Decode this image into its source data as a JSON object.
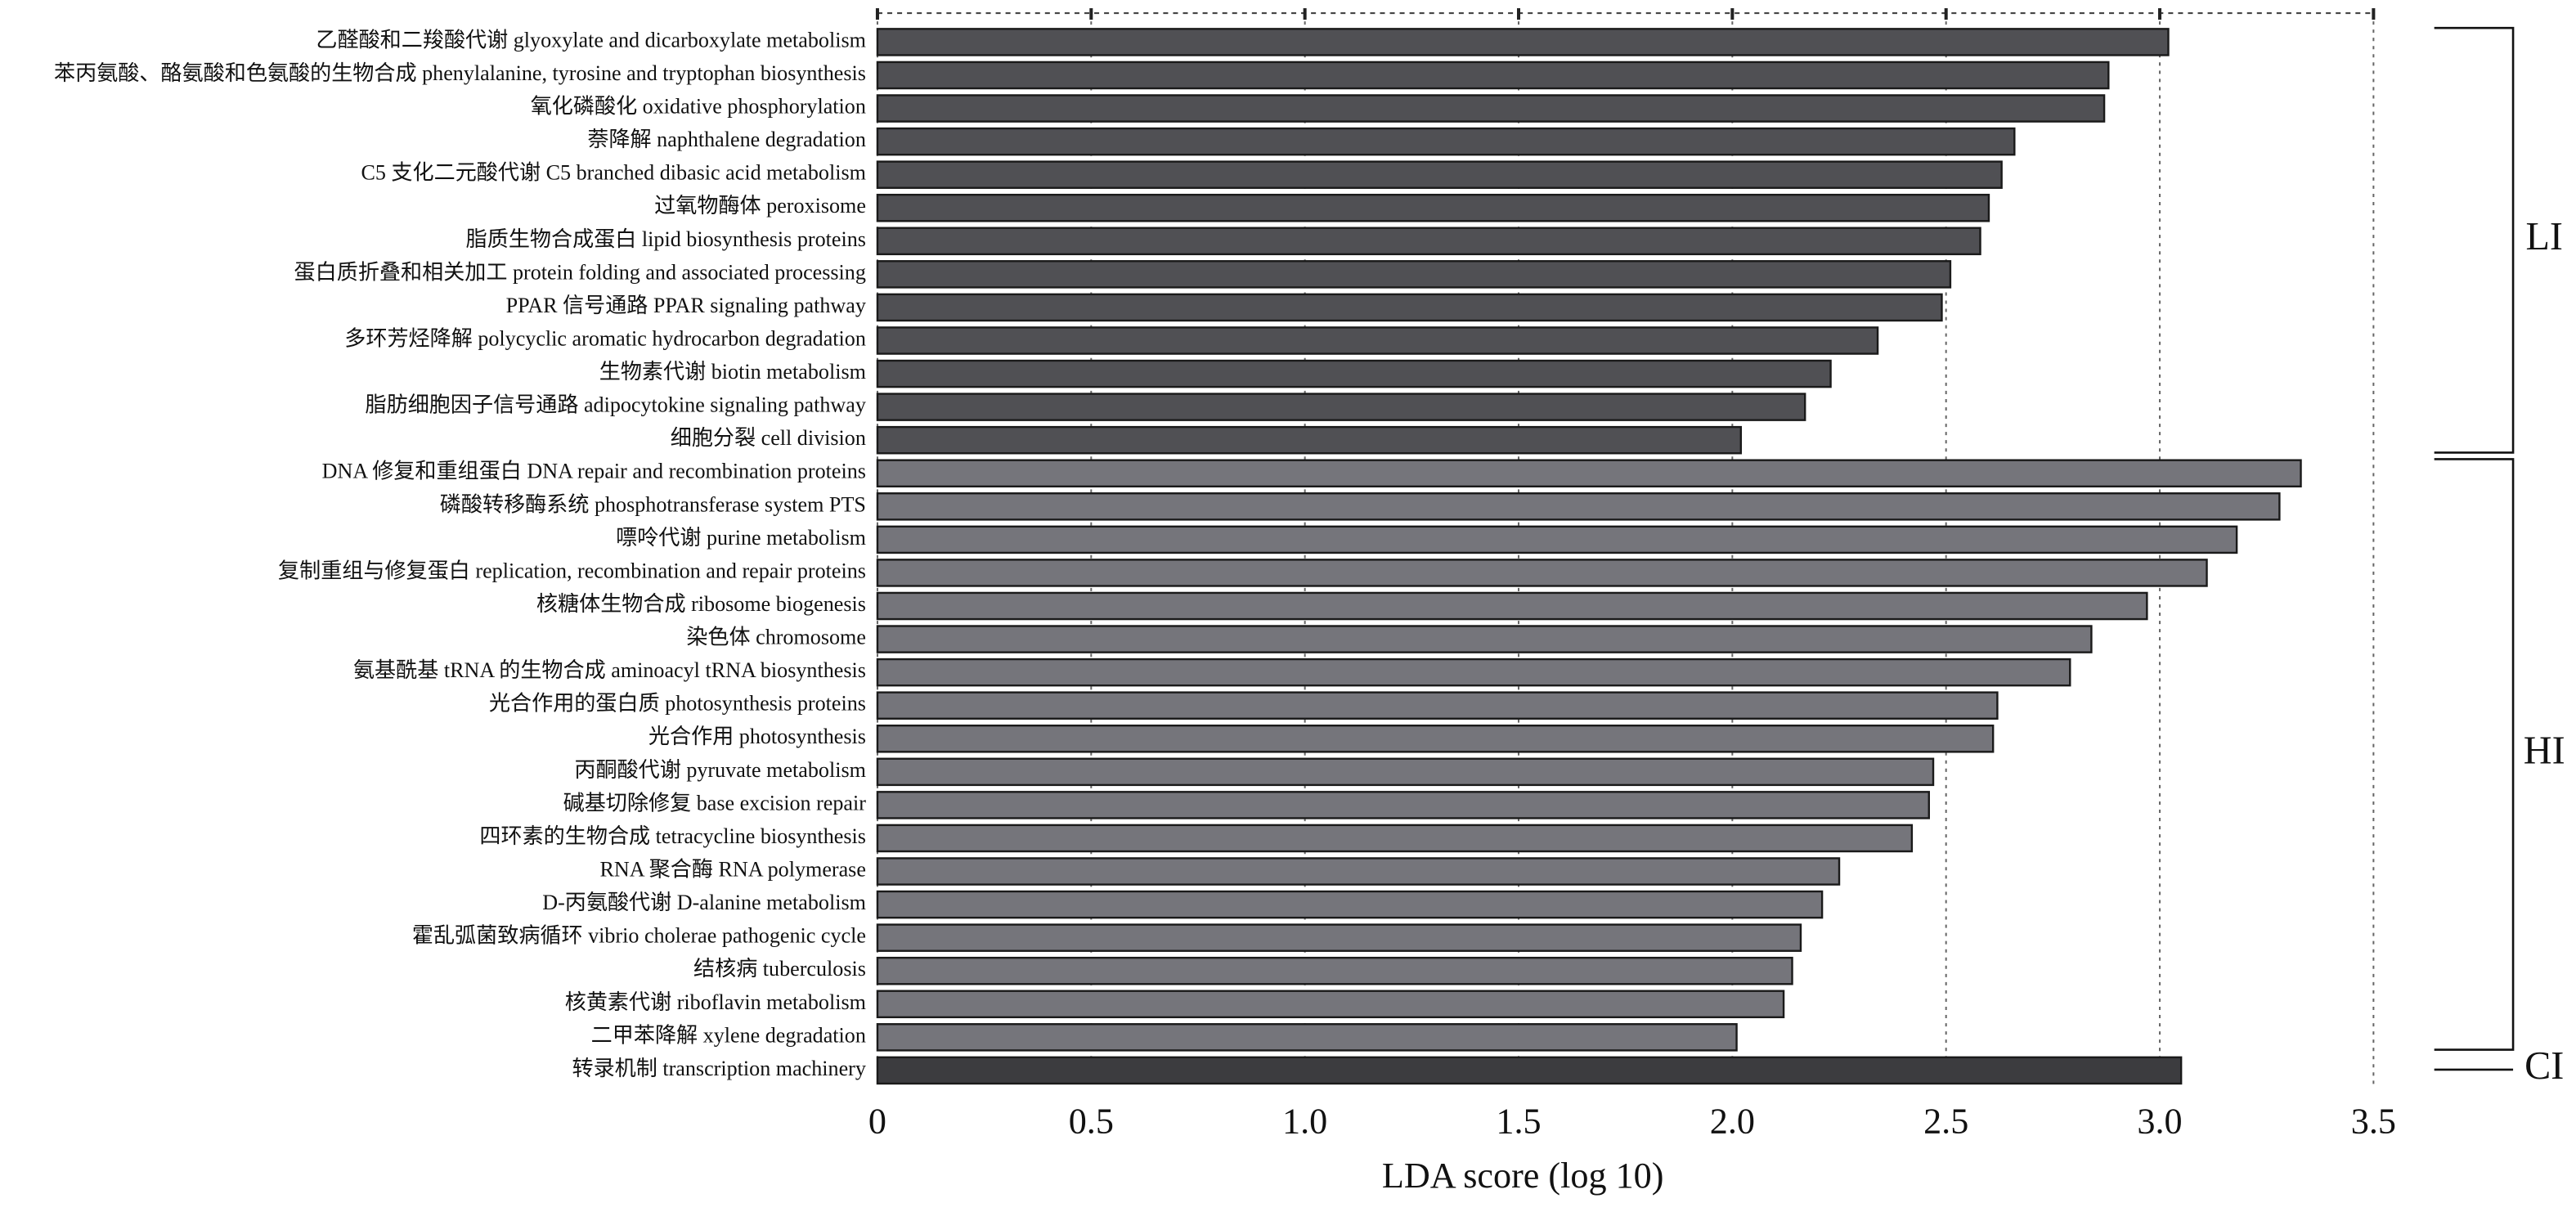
{
  "chart_data": {
    "type": "barh",
    "x_label": "LDA score (log 10)",
    "xlim": [
      0,
      3.5
    ],
    "xticks": [
      0,
      0.5,
      {
        "value": 1,
        "label": "1.0"
      },
      1.5,
      {
        "value": 2,
        "label": "2.0"
      },
      2.5,
      {
        "value": 3,
        "label": "3.0"
      },
      3.5
    ],
    "grid": true,
    "series": [
      {
        "name": "LI",
        "color": "#505054",
        "categories": [
          "乙醛酸和二羧酸代谢 glyoxylate and dicarboxylate metabolism",
          "苯丙氨酸、酪氨酸和色氨酸的生物合成 phenylalanine, tyrosine and tryptophan biosynthesis",
          "氧化磷酸化 oxidative phosphorylation",
          "萘降解 naphthalene degradation",
          "C5 支化二元酸代谢 C5 branched dibasic acid metabolism",
          "过氧物酶体 peroxisome",
          "脂质生物合成蛋白 lipid biosynthesis proteins",
          "蛋白质折叠和相关加工 protein folding and associated processing",
          "PPAR 信号通路 PPAR signaling pathway",
          "多环芳烃降解 polycyclic aromatic hydrocarbon degradation",
          "生物素代谢 biotin metabolism",
          "脂肪细胞因子信号通路 adipocytokine signaling pathway",
          "细胞分裂 cell division"
        ],
        "values": [
          3.02,
          2.88,
          2.87,
          2.66,
          2.63,
          2.6,
          2.58,
          2.51,
          2.49,
          2.34,
          2.23,
          2.17,
          2.02
        ]
      },
      {
        "name": "HI",
        "color": "#75757b",
        "categories": [
          "DNA 修复和重组蛋白 DNA repair and recombination proteins",
          "磷酸转移酶系统 phosphotransferase system PTS",
          "嘌呤代谢 purine metabolism",
          "复制重组与修复蛋白 replication, recombination and repair proteins",
          "核糖体生物合成 ribosome biogenesis",
          "染色体 chromosome",
          "氨基酰基 tRNA 的生物合成 aminoacyl tRNA biosynthesis",
          "光合作用的蛋白质 photosynthesis proteins",
          "光合作用 photosynthesis",
          "丙酮酸代谢 pyruvate metabolism",
          "碱基切除修复 base excision repair",
          "四环素的生物合成 tetracycline biosynthesis",
          "RNA 聚合酶 RNA polymerase",
          "D-丙氨酸代谢 D-alanine metabolism",
          "霍乱弧菌致病循环 vibrio cholerae pathogenic cycle",
          "结核病 tuberculosis",
          "核黄素代谢 riboflavin metabolism",
          "二甲苯降解 xylene degradation"
        ],
        "values": [
          3.33,
          3.28,
          3.18,
          3.11,
          2.97,
          2.84,
          2.79,
          2.62,
          2.61,
          2.47,
          2.46,
          2.42,
          2.25,
          2.21,
          2.16,
          2.14,
          2.12,
          2.01
        ]
      },
      {
        "name": "CI",
        "color": "#3c3c3f",
        "categories": [
          "转录机制 transcription machinery"
        ],
        "values": [
          3.05
        ]
      }
    ]
  }
}
